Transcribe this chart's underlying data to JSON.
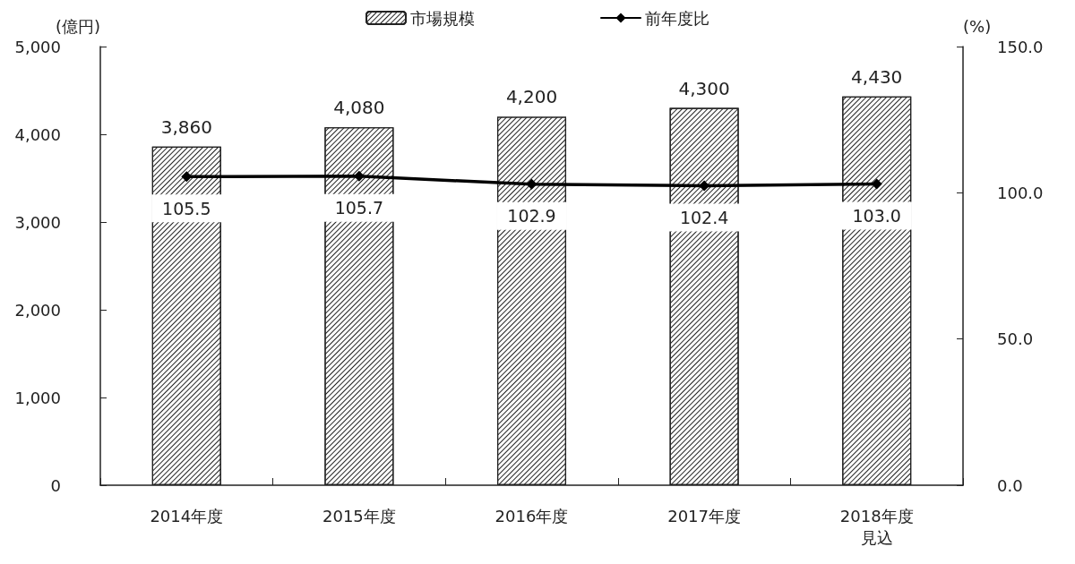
{
  "chart_data": {
    "type": "bar",
    "categories": [
      "2014年度",
      "2015年度",
      "2016年度",
      "2017年度",
      "2018年度見込"
    ],
    "ylabel": "(億円)",
    "y2label": "(%)",
    "series": [
      {
        "name": "市場規模",
        "color": "#ffffff",
        "values": [
          3860,
          4080,
          4200,
          4300,
          4430
        ],
        "value_labels": [
          "3,860",
          "4,080",
          "4,200",
          "4,300",
          "4,430"
        ]
      },
      {
        "name": "前年度比",
        "type": "line",
        "axis": "y2",
        "color": "#000000",
        "values": [
          105.5,
          105.7,
          102.9,
          102.4,
          103.0
        ],
        "value_labels": [
          "105.5",
          "105.7",
          "102.9",
          "102.4",
          "103.0"
        ]
      }
    ],
    "ylim": [
      0,
      5000
    ],
    "yticks": [
      0,
      {
        "value": 1000,
        "label": "1,000"
      },
      {
        "value": 2000,
        "label": "2,000"
      },
      {
        "value": 3000,
        "label": "3,000"
      },
      {
        "value": 4000,
        "label": "4,000"
      },
      {
        "value": 5000,
        "label": "5,000"
      }
    ],
    "y2lim": [
      0,
      150
    ],
    "y2ticks": [
      {
        "value": 0,
        "label": "0.0"
      },
      {
        "value": 50,
        "label": "50.0"
      },
      {
        "value": 100,
        "label": "100.0"
      },
      {
        "value": 150,
        "label": "150.0"
      }
    ],
    "grid": false,
    "legend": "top",
    "marker": "diamond",
    "line_style": "solid"
  }
}
